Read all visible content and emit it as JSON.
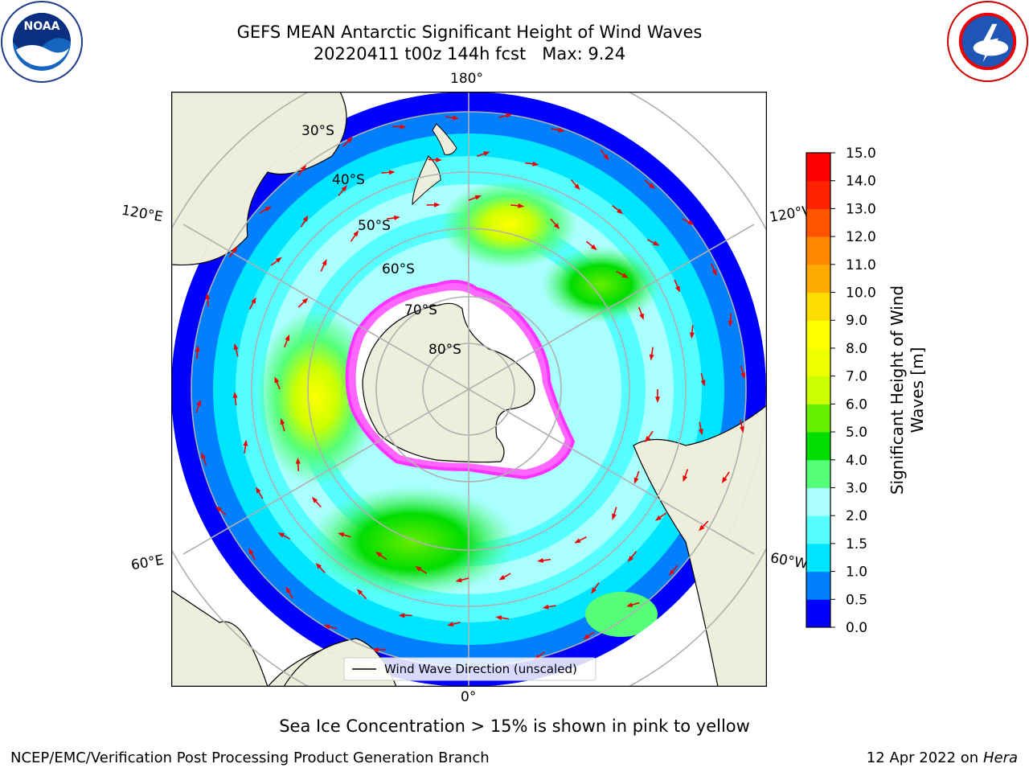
{
  "title_line1": "GEFS MEAN Antarctic Significant Height of Wind Waves",
  "title_line2": "20220411 t00z 144h fcst   Max: 9.24",
  "subtitle": "Sea Ice Concentration > 15% is shown in pink to yellow",
  "credit": "NCEP/EMC/Verification Post Processing Product Generation Branch",
  "date_text": "12 Apr 2022 on ",
  "machine": "Hera",
  "legend_label": "Wind Wave Direction (unscaled)",
  "longitude_labels": {
    "top": "180°",
    "bottom": "0°",
    "left_upper": "120°E",
    "left_lower": "60°E",
    "right_upper": "120°W",
    "right_lower": "60°W"
  },
  "latitude_labels": [
    "30°S",
    "40°S",
    "50°S",
    "60°S",
    "70°S",
    "80°S"
  ],
  "colorbar": {
    "label_line1": "Significant Height of Wind",
    "label_line2": "Waves [m]",
    "ticks": [
      "0.0",
      "0.5",
      "1.0",
      "1.5",
      "2.0",
      "3.0",
      "4.0",
      "5.0",
      "6.0",
      "7.0",
      "8.0",
      "9.0",
      "10.0",
      "11.0",
      "12.0",
      "13.0",
      "14.0",
      "15.0"
    ],
    "colors": [
      "#0000ff",
      "#0080ff",
      "#00e5ff",
      "#55ffff",
      "#aaffff",
      "#55ff77",
      "#00dd00",
      "#66ee00",
      "#ccff00",
      "#eeff00",
      "#ffff00",
      "#ffdd00",
      "#ffaa00",
      "#ff8800",
      "#ff5500",
      "#ff2200",
      "#ff0000"
    ]
  },
  "colors": {
    "ocean_low": "#0000ff",
    "land": "#eeeedd",
    "ice": "#ffffff",
    "ice_edge": "#ff33ff",
    "arrow": "#ee0000",
    "grid": "#b0b0b0"
  },
  "icons": {
    "noaa": "noaa-logo-icon",
    "nws": "nws-logo-icon"
  }
}
